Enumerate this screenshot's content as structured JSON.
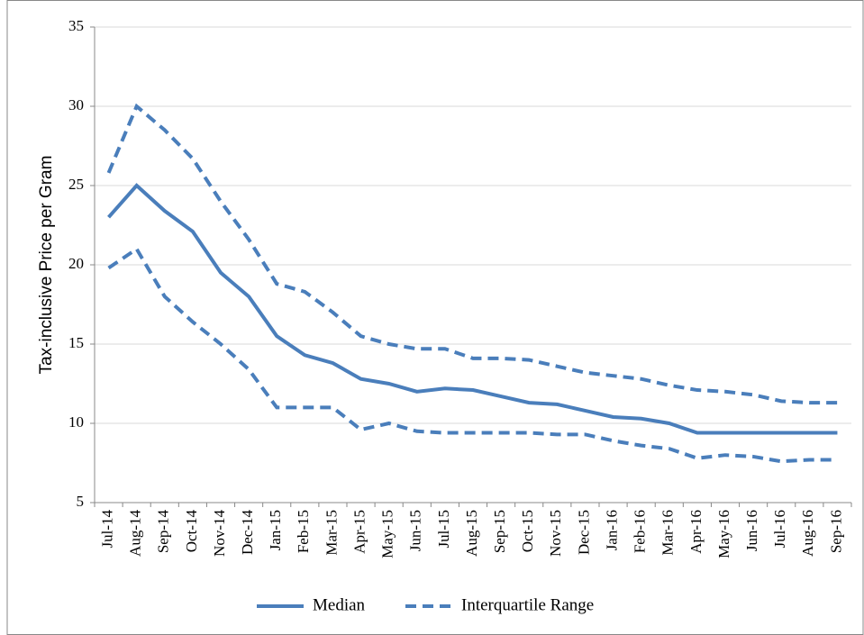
{
  "chart_data": {
    "type": "line",
    "y_label": "Tax-inclusive Price per Gram",
    "categories": [
      "Jul-14",
      "Aug-14",
      "Sep-14",
      "Oct-14",
      "Nov-14",
      "Dec-14",
      "Jan-15",
      "Feb-15",
      "Mar-15",
      "Apr-15",
      "May-15",
      "Jun-15",
      "Jul-15",
      "Aug-15",
      "Sep-15",
      "Oct-15",
      "Nov-15",
      "Dec-15",
      "Jan-16",
      "Feb-16",
      "Mar-16",
      "Apr-16",
      "May-16",
      "Jun-16",
      "Jul-16",
      "Aug-16",
      "Sep-16"
    ],
    "series": [
      {
        "name": "Median",
        "color": "#4a7ebb",
        "dashed": false,
        "values": [
          23,
          25,
          23.4,
          22.1,
          19.5,
          18,
          15.5,
          14.3,
          13.8,
          12.8,
          12.5,
          12,
          12.2,
          12.1,
          11.7,
          11.3,
          11.2,
          10.8,
          10.4,
          10.3,
          10,
          9.4,
          9.4,
          9.4,
          9.4,
          9.4,
          9.4
        ]
      },
      {
        "name": "Interquartile Range",
        "color": "#4a7ebb",
        "dashed": true,
        "upper": [
          25.8,
          30,
          28.5,
          26.7,
          24,
          21.6,
          18.8,
          18.3,
          17,
          15.5,
          15,
          14.7,
          14.7,
          14.1,
          14.1,
          14,
          13.6,
          13.2,
          13,
          12.8,
          12.4,
          12.1,
          12,
          11.8,
          11.4,
          11.3,
          11.3
        ],
        "lower": [
          19.8,
          21,
          18,
          16.4,
          15,
          13.4,
          11,
          11,
          11,
          9.6,
          10,
          9.5,
          9.4,
          9.4,
          9.4,
          9.4,
          9.3,
          9.3,
          8.9,
          8.6,
          8.4,
          7.8,
          8,
          7.9,
          7.6,
          7.7,
          7.7
        ]
      }
    ],
    "ylim": [
      5,
      35
    ],
    "yticks": [
      5,
      10,
      15,
      20,
      25,
      30,
      35
    ],
    "grid": true
  }
}
